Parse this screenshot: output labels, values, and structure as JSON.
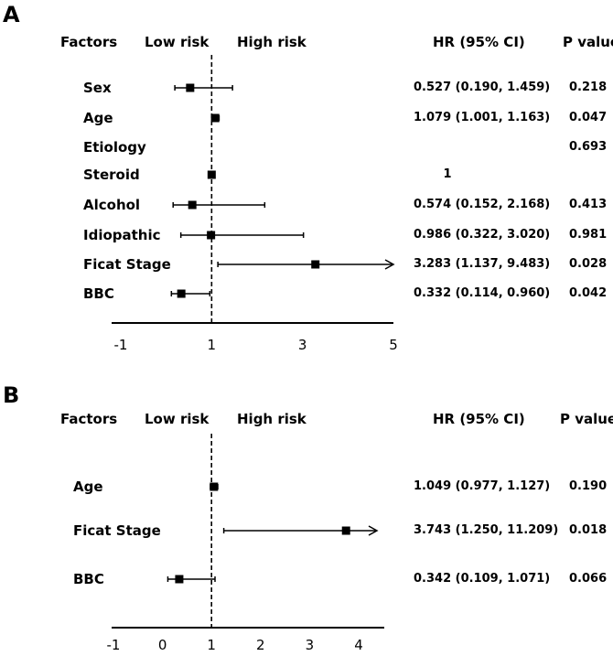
{
  "chart_data": [
    {
      "panel": "A",
      "type": "forest",
      "headers": {
        "factors": "Factors",
        "low": "Low risk",
        "high": "High risk",
        "hr": "HR (95% CI)",
        "p": "P value"
      },
      "xlim": [
        -1,
        5
      ],
      "x_ticks": [
        -1,
        1,
        3,
        5
      ],
      "reference_line": 1,
      "rows": [
        {
          "factor": "Sex",
          "hr": 0.527,
          "lo": 0.19,
          "hi": 1.459,
          "hr_text": "0.527 (0.190, 1.459)",
          "p": "0.218"
        },
        {
          "factor": "Age",
          "hr": 1.079,
          "lo": 1.001,
          "hi": 1.163,
          "hr_text": "1.079 (1.001, 1.163)",
          "p": "0.047"
        },
        {
          "factor": "Etiology",
          "hr": null,
          "lo": null,
          "hi": null,
          "hr_text": "",
          "p": "0.693"
        },
        {
          "factor": "Steroid",
          "hr": 1,
          "lo": null,
          "hi": null,
          "hr_text": "1",
          "p": ""
        },
        {
          "factor": "Alcohol",
          "hr": 0.574,
          "lo": 0.152,
          "hi": 2.168,
          "hr_text": "0.574 (0.152, 2.168)",
          "p": "0.413"
        },
        {
          "factor": "Idiopathic",
          "hr": 0.986,
          "lo": 0.322,
          "hi": 3.02,
          "hr_text": "0.986 (0.322, 3.020)",
          "p": "0.981"
        },
        {
          "factor": "Ficat Stage",
          "hr": 3.283,
          "lo": 1.137,
          "hi": 9.483,
          "hr_text": "3.283 (1.137, 9.483)",
          "p": "0.028",
          "arrow_right": true
        },
        {
          "factor": "BBC",
          "hr": 0.332,
          "lo": 0.114,
          "hi": 0.96,
          "hr_text": "0.332 (0.114, 0.960)",
          "p": "0.042"
        }
      ]
    },
    {
      "panel": "B",
      "type": "forest",
      "headers": {
        "factors": "Factors",
        "low": "Low risk",
        "high": "High risk",
        "hr": "HR (95% CI)",
        "p": "P value"
      },
      "xlim": [
        -1,
        4
      ],
      "x_ticks": [
        -1,
        0,
        1,
        2,
        3,
        4
      ],
      "reference_line": 1,
      "rows": [
        {
          "factor": "Age",
          "hr": 1.049,
          "lo": 0.977,
          "hi": 1.127,
          "hr_text": "1.049 (0.977, 1.127)",
          "p": "0.190"
        },
        {
          "factor": "Ficat Stage",
          "hr": 3.743,
          "lo": 1.25,
          "hi": 11.209,
          "hr_text": "3.743 (1.250, 11.209)",
          "p": "0.018",
          "arrow_right": true
        },
        {
          "factor": "BBC",
          "hr": 0.342,
          "lo": 0.109,
          "hi": 1.071,
          "hr_text": "0.342 (0.109, 1.071)",
          "p": "0.066"
        }
      ]
    }
  ]
}
